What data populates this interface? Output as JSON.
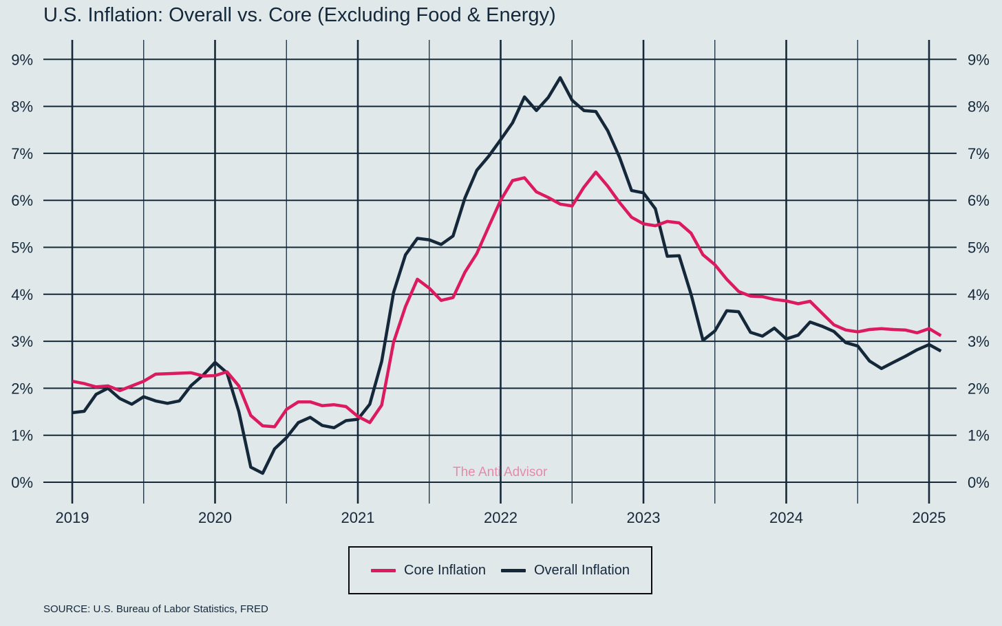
{
  "chart_data": {
    "type": "line",
    "title": "U.S. Inflation: Overall vs. Core (Excluding Food & Energy)",
    "source": "SOURCE: U.S. Bureau of Labor Statistics, FRED",
    "watermark": "The Anti Advisor",
    "xlabel": "",
    "ylabel": "",
    "x_start": "2019-01",
    "x_end": "2025-01",
    "x_ticks": [
      "2019",
      "2020",
      "2021",
      "2022",
      "2023",
      "2024",
      "2025"
    ],
    "y_ticks": [
      "0%",
      "1%",
      "2%",
      "3%",
      "4%",
      "5%",
      "6%",
      "7%",
      "8%",
      "9%"
    ],
    "ylim": [
      0,
      9
    ],
    "grid": true,
    "legend_position": "bottom",
    "series": [
      {
        "name": "Core Inflation",
        "color": "#dc1a5e",
        "values": [
          2.15,
          2.1,
          2.03,
          2.05,
          1.95,
          2.05,
          2.15,
          2.3,
          2.31,
          2.32,
          2.33,
          2.26,
          2.27,
          2.35,
          2.05,
          1.42,
          1.2,
          1.18,
          1.55,
          1.71,
          1.71,
          1.63,
          1.65,
          1.61,
          1.4,
          1.27,
          1.64,
          2.98,
          3.74,
          4.32,
          4.13,
          3.87,
          3.93,
          4.47,
          4.87,
          5.44,
          6.0,
          6.42,
          6.48,
          6.18,
          6.06,
          5.92,
          5.88,
          6.28,
          6.6,
          6.3,
          5.95,
          5.64,
          5.5,
          5.46,
          5.55,
          5.52,
          5.3,
          4.84,
          4.63,
          4.32,
          4.06,
          3.96,
          3.95,
          3.89,
          3.86,
          3.8,
          3.85,
          3.6,
          3.35,
          3.24,
          3.2,
          3.25,
          3.27,
          3.25,
          3.24,
          3.18,
          3.27,
          3.12
        ]
      },
      {
        "name": "Overall Inflation",
        "color": "#14283a",
        "values": [
          1.48,
          1.51,
          1.87,
          2.0,
          1.78,
          1.66,
          1.82,
          1.73,
          1.68,
          1.73,
          2.06,
          2.28,
          2.55,
          2.33,
          1.5,
          0.32,
          0.19,
          0.71,
          0.95,
          1.27,
          1.38,
          1.21,
          1.16,
          1.31,
          1.34,
          1.66,
          2.57,
          4.04,
          4.84,
          5.19,
          5.16,
          5.06,
          5.24,
          6.05,
          6.64,
          6.94,
          7.29,
          7.65,
          8.2,
          7.91,
          8.19,
          8.61,
          8.13,
          7.91,
          7.89,
          7.48,
          6.91,
          6.21,
          6.16,
          5.82,
          4.81,
          4.82,
          4.0,
          3.02,
          3.22,
          3.65,
          3.63,
          3.19,
          3.11,
          3.28,
          3.05,
          3.13,
          3.41,
          3.32,
          3.21,
          2.97,
          2.9,
          2.58,
          2.42,
          2.55,
          2.68,
          2.82,
          2.93,
          2.79
        ]
      }
    ]
  }
}
